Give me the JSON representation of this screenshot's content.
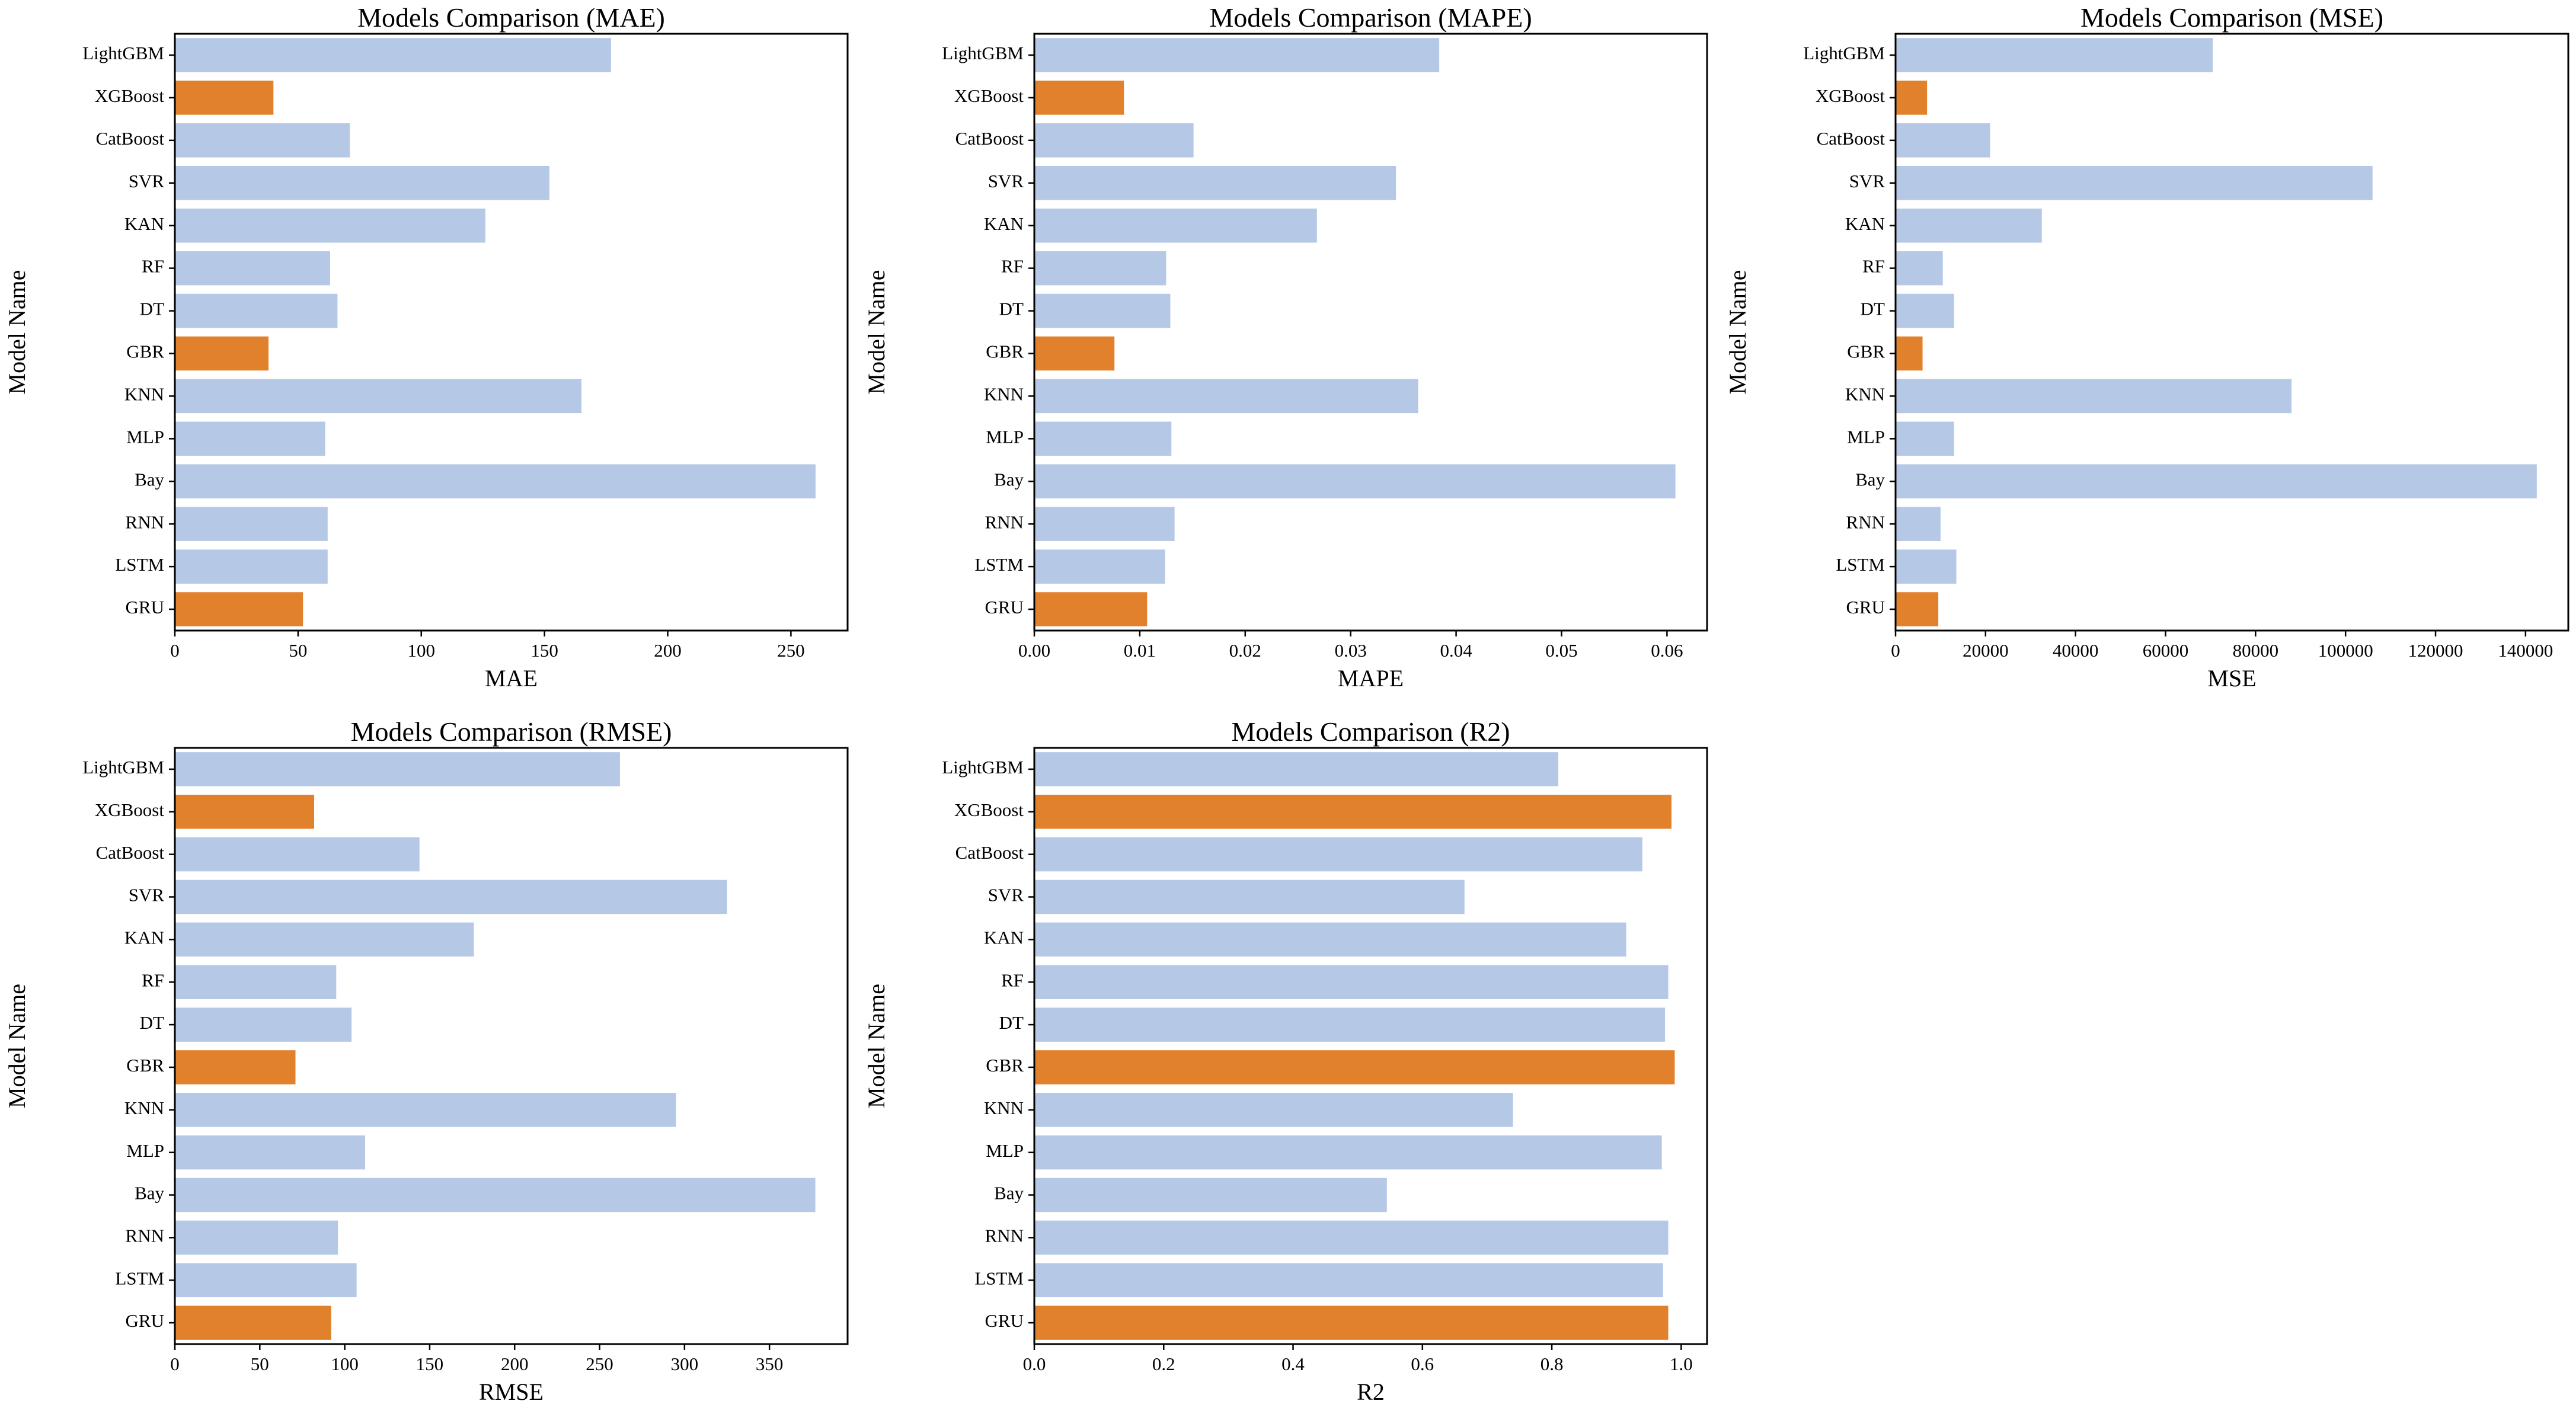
{
  "chart_data": [
    {
      "type": "bar",
      "orientation": "horizontal",
      "title": "Models Comparison (MAE)",
      "xlabel": "MAE",
      "ylabel": "Model Name",
      "categories": [
        "LightGBM",
        "XGBoost",
        "CatBoost",
        "SVR",
        "KAN",
        "RF",
        "DT",
        "GBR",
        "KNN",
        "MLP",
        "Bay",
        "RNN",
        "LSTM",
        "GRU"
      ],
      "values": [
        177,
        40,
        71,
        152,
        126,
        63,
        66,
        38,
        165,
        61,
        260,
        62,
        62,
        52
      ],
      "highlighted": [
        "XGBoost",
        "GBR",
        "GRU"
      ],
      "xlim": [
        0,
        273
      ],
      "xticks": [
        0,
        50,
        100,
        150,
        200,
        250
      ],
      "xtick_labels": [
        "0",
        "50",
        "100",
        "150",
        "200",
        "250"
      ]
    },
    {
      "type": "bar",
      "orientation": "horizontal",
      "title": "Models Comparison (MAPE)",
      "xlabel": "MAPE",
      "ylabel": "Model Name",
      "categories": [
        "LightGBM",
        "XGBoost",
        "CatBoost",
        "SVR",
        "KAN",
        "RF",
        "DT",
        "GBR",
        "KNN",
        "MLP",
        "Bay",
        "RNN",
        "LSTM",
        "GRU"
      ],
      "values": [
        0.0384,
        0.0085,
        0.0151,
        0.0343,
        0.0268,
        0.0125,
        0.0129,
        0.0076,
        0.0364,
        0.013,
        0.0608,
        0.0133,
        0.0124,
        0.0107
      ],
      "highlighted": [
        "XGBoost",
        "GBR",
        "GRU"
      ],
      "xlim": [
        0,
        0.0638
      ],
      "xticks": [
        0,
        0.01,
        0.02,
        0.03,
        0.04,
        0.05,
        0.06
      ],
      "xtick_labels": [
        "0.00",
        "0.01",
        "0.02",
        "0.03",
        "0.04",
        "0.05",
        "0.06"
      ]
    },
    {
      "type": "bar",
      "orientation": "horizontal",
      "title": "Models Comparison (MSE)",
      "xlabel": "MSE",
      "ylabel": "Model Name",
      "categories": [
        "LightGBM",
        "XGBoost",
        "CatBoost",
        "SVR",
        "KAN",
        "RF",
        "DT",
        "GBR",
        "KNN",
        "MLP",
        "Bay",
        "RNN",
        "LSTM",
        "GRU"
      ],
      "values": [
        70500,
        7000,
        21000,
        106000,
        32500,
        10500,
        13000,
        6000,
        88000,
        13000,
        142500,
        10000,
        13500,
        9500
      ],
      "highlighted": [
        "XGBoost",
        "GBR",
        "GRU"
      ],
      "xlim": [
        0,
        149500
      ],
      "xticks": [
        0,
        20000,
        40000,
        60000,
        80000,
        100000,
        120000,
        140000
      ],
      "xtick_labels": [
        "0",
        "20000",
        "40000",
        "60000",
        "80000",
        "100000",
        "120000",
        "140000"
      ]
    },
    {
      "type": "bar",
      "orientation": "horizontal",
      "title": "Models Comparison (RMSE)",
      "xlabel": "RMSE",
      "ylabel": "Model Name",
      "categories": [
        "LightGBM",
        "XGBoost",
        "CatBoost",
        "SVR",
        "KAN",
        "RF",
        "DT",
        "GBR",
        "KNN",
        "MLP",
        "Bay",
        "RNN",
        "LSTM",
        "GRU"
      ],
      "values": [
        262,
        82,
        144,
        325,
        176,
        95,
        104,
        71,
        295,
        112,
        377,
        96,
        107,
        92
      ],
      "highlighted": [
        "XGBoost",
        "GBR",
        "GRU"
      ],
      "xlim": [
        0,
        396
      ],
      "xticks": [
        0,
        50,
        100,
        150,
        200,
        250,
        300,
        350
      ],
      "xtick_labels": [
        "0",
        "50",
        "100",
        "150",
        "200",
        "250",
        "300",
        "350"
      ]
    },
    {
      "type": "bar",
      "orientation": "horizontal",
      "title": "Models Comparison (R2)",
      "xlabel": "R2",
      "ylabel": "Model Name",
      "categories": [
        "LightGBM",
        "XGBoost",
        "CatBoost",
        "SVR",
        "KAN",
        "RF",
        "DT",
        "GBR",
        "KNN",
        "MLP",
        "Bay",
        "RNN",
        "LSTM",
        "GRU"
      ],
      "values": [
        0.81,
        0.985,
        0.94,
        0.665,
        0.915,
        0.98,
        0.975,
        0.99,
        0.74,
        0.97,
        0.545,
        0.98,
        0.972,
        0.98
      ],
      "highlighted": [
        "XGBoost",
        "GBR",
        "GRU"
      ],
      "xlim": [
        0,
        1.04
      ],
      "xticks": [
        0,
        0.2,
        0.4,
        0.6,
        0.8,
        1.0
      ],
      "xtick_labels": [
        "0.0",
        "0.2",
        "0.4",
        "0.6",
        "0.8",
        "1.0"
      ]
    }
  ],
  "colors": {
    "bar_default": "#b5c8e6",
    "bar_highlight": "#e1812c",
    "frame": "#000000"
  }
}
